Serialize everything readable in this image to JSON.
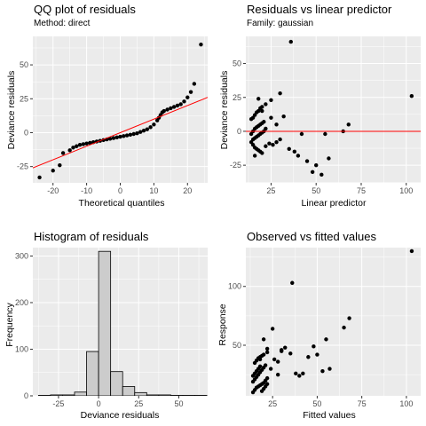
{
  "chart_data": [
    {
      "type": "scatter",
      "title": "QQ plot of residuals",
      "subtitle": "Method: direct",
      "xlabel": "Theoretical quantiles",
      "ylabel": "Deviance residuals",
      "xlim": [
        -26,
        26
      ],
      "ylim": [
        -37,
        71
      ],
      "xticks": [
        -20,
        -10,
        0,
        10,
        20
      ],
      "xtick_labels": [
        "-20",
        "-10",
        "0",
        "10",
        "20"
      ],
      "yticks": [
        -25,
        0,
        25,
        50
      ],
      "ytick_labels": [
        "-25",
        "0",
        "25",
        "50"
      ],
      "grid": true,
      "reference_line": {
        "color": "#ff0000",
        "x": [
          -26,
          26
        ],
        "y": [
          -26,
          26
        ]
      },
      "series": [
        {
          "color": "#000000",
          "x": [
            -24,
            -20,
            -18,
            -17,
            -15,
            -14,
            -13,
            -12,
            -11,
            -10,
            -9,
            -8,
            -7,
            -6,
            -5,
            -4,
            -3,
            -2,
            -1,
            0,
            1,
            2,
            3,
            4,
            5,
            6,
            7,
            8,
            9,
            10,
            11,
            11.5,
            12,
            12.5,
            13,
            14,
            15,
            16,
            17,
            18,
            19,
            20,
            21,
            22,
            24
          ],
          "y": [
            -33,
            -28,
            -24,
            -15,
            -13,
            -11,
            -10,
            -9,
            -8.5,
            -8,
            -7.5,
            -7,
            -6.5,
            -6,
            -5.5,
            -5,
            -4.5,
            -4,
            -3.5,
            -3,
            -2.5,
            -2,
            -1.5,
            -1,
            -0.5,
            0.5,
            1.5,
            2.5,
            4,
            6,
            9,
            11,
            13,
            15,
            16,
            17,
            18,
            19,
            20,
            21,
            23,
            26,
            30,
            36,
            65
          ]
        }
      ]
    },
    {
      "type": "scatter",
      "title": "Residuals vs linear predictor",
      "subtitle": "Family: gaussian",
      "xlabel": "Linear predictor",
      "ylabel": "Deviance residuals",
      "xlim": [
        11,
        108
      ],
      "ylim": [
        -38,
        70
      ],
      "xticks": [
        25,
        50,
        75,
        100
      ],
      "xtick_labels": [
        "25",
        "50",
        "75",
        "100"
      ],
      "yticks": [
        -25,
        0,
        25,
        50
      ],
      "ytick_labels": [
        "-25",
        "0",
        "25",
        "50"
      ],
      "grid": true,
      "reference_line": {
        "color": "#ff0000",
        "x": [
          11,
          108
        ],
        "y": [
          0,
          0
        ]
      },
      "series": [
        {
          "color": "#000000",
          "x": [
            14,
            15,
            16,
            17,
            18,
            19,
            20,
            21,
            22,
            14,
            15,
            16,
            17,
            18,
            19,
            20,
            21,
            14,
            15,
            16,
            17,
            18,
            19,
            20,
            15,
            16,
            17,
            18,
            19,
            20,
            22,
            24,
            26,
            28,
            30,
            35,
            38,
            40,
            42,
            45,
            48,
            50,
            53,
            55,
            57,
            65,
            68,
            103,
            20,
            22,
            25,
            30,
            32,
            18,
            16,
            25,
            28
          ],
          "y": [
            -8,
            -6,
            -5,
            -4,
            -3,
            -2,
            -1,
            0,
            2,
            -2,
            0,
            2,
            3,
            4,
            5,
            6,
            7,
            9,
            10,
            12,
            14,
            15,
            17,
            18,
            -10,
            -12,
            -13,
            -14,
            -15,
            -16,
            -11,
            -9,
            -10,
            -8,
            -6,
            -13,
            -15,
            -18,
            -2,
            -22,
            -30,
            -25,
            -32,
            -2,
            -20,
            0,
            5,
            26,
            15,
            20,
            23,
            28,
            11,
            24,
            -18,
            10,
            5
          ]
        },
        {
          "color": "#000000",
          "x": [
            36
          ],
          "y": [
            66
          ]
        }
      ]
    },
    {
      "type": "bar",
      "title": "Histogram of residuals",
      "xlabel": "Deviance residuals",
      "ylabel": "Frequency",
      "xlim": [
        -41,
        68
      ],
      "ylim": [
        0,
        318
      ],
      "xticks": [
        -25,
        0,
        25,
        50
      ],
      "xtick_labels": [
        "-25",
        "0",
        "25",
        "50"
      ],
      "yticks": [
        0,
        100,
        200,
        300
      ],
      "ytick_labels": [
        "0",
        "100",
        "200",
        "300"
      ],
      "grid": true,
      "bin_edges": [
        -37.5,
        -30,
        -22.5,
        -15,
        -7.5,
        0,
        7.5,
        15,
        22.5,
        30,
        37.5,
        45,
        52.5,
        60,
        67.5
      ],
      "values": [
        1,
        2,
        2,
        8,
        95,
        310,
        52,
        20,
        7,
        2,
        2,
        1,
        1,
        1
      ],
      "bar_color": "#cccccc"
    },
    {
      "type": "scatter",
      "title": "Observed vs fitted values",
      "xlabel": "Fitted values",
      "ylabel": "Response",
      "xlim": [
        10,
        108
      ],
      "ylim": [
        7,
        133
      ],
      "xticks": [
        25,
        50,
        75,
        100
      ],
      "xtick_labels": [
        "25",
        "50",
        "75",
        "100"
      ],
      "yticks": [
        50,
        100
      ],
      "ytick_labels": [
        "50",
        "100"
      ],
      "grid": true,
      "series": [
        {
          "color": "#000000",
          "x": [
            14,
            15,
            16,
            17,
            18,
            19,
            20,
            21,
            22,
            14,
            15,
            16,
            17,
            18,
            19,
            20,
            21,
            22,
            14,
            15,
            16,
            17,
            18,
            19,
            20,
            21,
            15,
            16,
            17,
            18,
            19,
            20,
            22,
            24,
            26,
            28,
            30,
            32,
            35,
            38,
            40,
            42,
            45,
            48,
            50,
            53,
            55,
            57,
            65,
            68,
            103,
            36,
            20,
            22,
            25,
            30,
            18,
            28
          ],
          "y": [
            10,
            12,
            14,
            15,
            16,
            17,
            18,
            20,
            22,
            24,
            26,
            28,
            30,
            32,
            11,
            13,
            15,
            17,
            19,
            21,
            23,
            25,
            27,
            29,
            31,
            33,
            35,
            37,
            39,
            40,
            41,
            42,
            44,
            30,
            38,
            36,
            45,
            48,
            43,
            26,
            24,
            26,
            40,
            49,
            42,
            28,
            55,
            30,
            65,
            73,
            130,
            103,
            55,
            47,
            64,
            46,
            38,
            25
          ]
        }
      ]
    }
  ]
}
